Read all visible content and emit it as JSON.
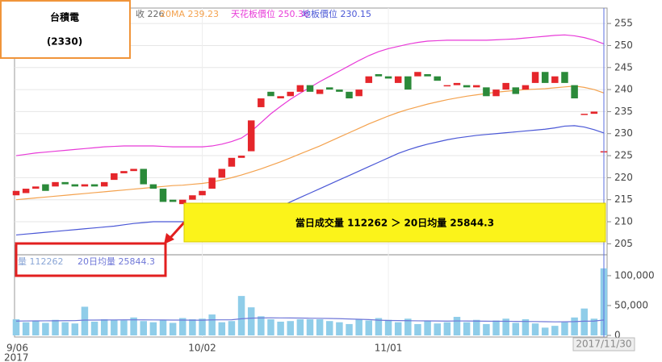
{
  "chart_data": {
    "type": "candlestick",
    "title": "台積電",
    "subtitle": "(2330)",
    "annotation": "當日成交量 112262 ＞ 20日均量 25844.3",
    "x_year": "2017",
    "up_color": "#e5262b",
    "down_color": "#2b8a3a",
    "grid": true,
    "categories": [
      "9/06",
      null,
      null,
      null,
      null,
      null,
      null,
      null,
      null,
      null,
      null,
      null,
      null,
      null,
      null,
      null,
      null,
      null,
      null,
      "10/02",
      null,
      null,
      null,
      null,
      null,
      null,
      null,
      null,
      null,
      null,
      null,
      null,
      null,
      null,
      null,
      null,
      null,
      null,
      "11/01",
      null,
      null,
      null,
      null,
      null,
      null,
      null,
      null,
      null,
      null,
      null,
      null,
      null,
      null,
      null,
      null,
      null,
      null,
      null,
      null,
      null,
      "2017/11/30"
    ],
    "open": [
      216,
      216.5,
      217.5,
      218.5,
      218,
      219,
      218.5,
      218,
      218.5,
      218,
      219.5,
      221,
      221.5,
      222,
      218.5,
      217.5,
      215,
      214,
      215,
      216,
      217.5,
      220,
      222.5,
      224.5,
      226,
      236,
      239.5,
      238,
      238.5,
      239.5,
      241,
      239,
      240.5,
      240,
      239.5,
      238.5,
      241.5,
      243.5,
      243,
      241.5,
      243,
      243,
      243.5,
      243,
      241,
      241,
      241,
      240.5,
      240.5,
      238.5,
      240,
      240.5,
      240,
      241.5,
      244,
      241.5,
      244,
      241,
      234.5,
      234.5,
      226
    ],
    "close": [
      217,
      217.5,
      218,
      217,
      219,
      218.5,
      218,
      218.5,
      218,
      219,
      221,
      221.5,
      222,
      218.5,
      217.5,
      214.5,
      214.5,
      215,
      216,
      217,
      220,
      222,
      224.5,
      225,
      233,
      238,
      238.5,
      238.5,
      239.5,
      241,
      239.5,
      240,
      240,
      239.5,
      238,
      240,
      243,
      243,
      242.5,
      243,
      240,
      244,
      243,
      242,
      241,
      241.5,
      240.5,
      241,
      238.5,
      240,
      241.5,
      239,
      241,
      244,
      241.5,
      243,
      241.5,
      238,
      234.5,
      235,
      226
    ],
    "ylim": [
      202.5,
      258.5
    ],
    "yticks": [
      205,
      210,
      215,
      220,
      225,
      230,
      235,
      240,
      245,
      250,
      255
    ],
    "price_legend": "收 226",
    "lines": [
      {
        "label": "20MA 239.23",
        "color": "#f4a24e",
        "values": [
          215,
          215.2,
          215.4,
          215.6,
          215.8,
          216,
          216.2,
          216.4,
          216.6,
          216.8,
          217,
          217.2,
          217.4,
          217.6,
          217.8,
          218,
          218.2,
          218.3,
          218.5,
          218.7,
          219,
          219.5,
          220,
          220.6,
          221.3,
          222,
          222.8,
          223.6,
          224.5,
          225.4,
          226.3,
          227.2,
          228.2,
          229.2,
          230.2,
          231.2,
          232.2,
          233.1,
          234,
          234.8,
          235.5,
          236.1,
          236.7,
          237.2,
          237.7,
          238.1,
          238.5,
          238.8,
          239.1,
          239.4,
          239.6,
          239.8,
          240,
          240.1,
          240.2,
          240.4,
          240.6,
          240.8,
          240.5,
          240,
          239.23
        ]
      },
      {
        "label": "天花板價位 250.36",
        "color": "#e83ad8",
        "values": [
          225,
          225.3,
          225.6,
          225.8,
          226,
          226.2,
          226.4,
          226.6,
          226.8,
          227,
          227.1,
          227.2,
          227.2,
          227.2,
          227.2,
          227.1,
          227,
          227,
          227,
          227,
          227.2,
          227.6,
          228.2,
          229,
          230.5,
          232.5,
          234.5,
          236.2,
          237.8,
          239.2,
          240.5,
          241.8,
          243,
          244.2,
          245.4,
          246.6,
          247.7,
          248.6,
          249.3,
          249.8,
          250.3,
          250.7,
          251,
          251.1,
          251.2,
          251.2,
          251.2,
          251.2,
          251.2,
          251.3,
          251.4,
          251.5,
          251.7,
          251.9,
          252.1,
          252.3,
          252.4,
          252.2,
          251.8,
          251.2,
          250.36
        ]
      },
      {
        "label": "地板價位 230.15",
        "color": "#4a57d6",
        "values": [
          207,
          207.2,
          207.4,
          207.6,
          207.8,
          208,
          208.2,
          208.4,
          208.6,
          208.8,
          209,
          209.3,
          209.6,
          209.8,
          210,
          210,
          210,
          210,
          210,
          210,
          210.2,
          210.4,
          210.6,
          210.8,
          211.2,
          211.8,
          212.5,
          213.5,
          214.5,
          215.5,
          216.5,
          217.5,
          218.5,
          219.5,
          220.5,
          221.5,
          222.5,
          223.5,
          224.5,
          225.5,
          226.3,
          227,
          227.6,
          228.1,
          228.6,
          229,
          229.3,
          229.6,
          229.8,
          230,
          230.2,
          230.4,
          230.6,
          230.8,
          231,
          231.3,
          231.7,
          231.8,
          231.5,
          230.9,
          230.15
        ]
      }
    ],
    "volume": {
      "color": "#8fcde9",
      "ma_color": "#6f77d8",
      "legend": [
        "量 112262",
        "20日均量 25844.3"
      ],
      "values": [
        27000,
        22000,
        24000,
        21000,
        26000,
        22000,
        20000,
        48000,
        23000,
        27000,
        26000,
        25000,
        30000,
        24000,
        22000,
        25000,
        21000,
        29000,
        27000,
        28000,
        35000,
        22000,
        24000,
        66000,
        47000,
        32000,
        27000,
        23000,
        24000,
        27000,
        27000,
        27000,
        24000,
        22000,
        19000,
        27000,
        25000,
        29000,
        26000,
        22000,
        28000,
        19000,
        24000,
        20000,
        22000,
        31000,
        22000,
        26000,
        19000,
        25000,
        28000,
        21000,
        27000,
        20000,
        13000,
        16000,
        22000,
        30000,
        45000,
        28000,
        112262
      ],
      "ma_values": [
        24000,
        24200,
        24300,
        24400,
        24500,
        24600,
        24700,
        25600,
        25700,
        25800,
        25900,
        26000,
        26100,
        26000,
        25900,
        25800,
        25700,
        25600,
        25500,
        25500,
        26000,
        26100,
        26200,
        27800,
        28900,
        29300,
        29400,
        29300,
        29200,
        29000,
        28800,
        28600,
        28400,
        28000,
        27500,
        27000,
        26500,
        25500,
        25000,
        24800,
        24600,
        24400,
        24300,
        24100,
        24000,
        24200,
        24100,
        24000,
        23800,
        23700,
        23600,
        23500,
        23400,
        23200,
        22900,
        22700,
        22800,
        23100,
        23800,
        24000,
        25844.3
      ],
      "ylim": [
        0,
        135000
      ],
      "yticks": [
        0,
        {
          "value": 50000,
          "label": "50,000"
        },
        {
          "value": 100000,
          "label": "100,000"
        }
      ]
    }
  }
}
